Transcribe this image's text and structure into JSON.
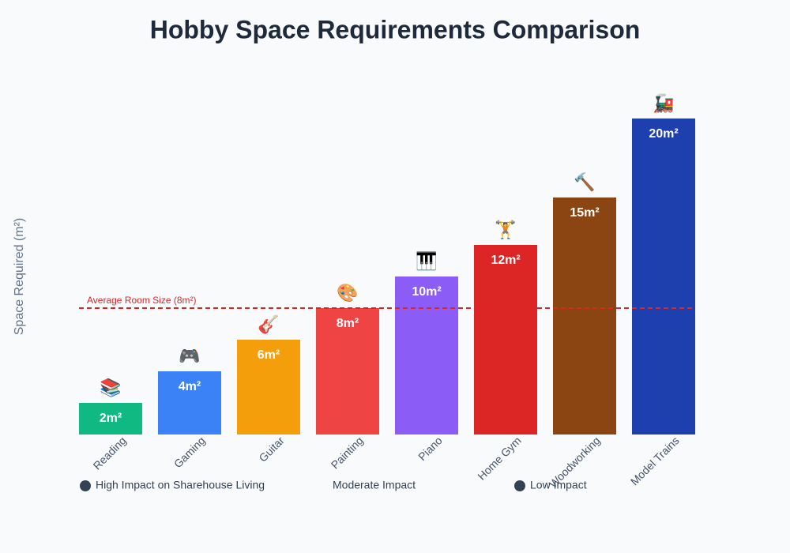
{
  "chart_data": {
    "type": "bar",
    "title": "Hobby Space Requirements Comparison",
    "y_label": "Space Required (m²)",
    "categories": [
      "Reading",
      "Gaming",
      "Guitar",
      "Painting",
      "Piano",
      "Home Gym",
      "Woodworking",
      "Model Trains"
    ],
    "values": [
      2,
      4,
      6,
      8,
      10,
      12,
      15,
      20
    ],
    "value_labels": [
      "2m²",
      "4m²",
      "6m²",
      "8m²",
      "10m²",
      "12m²",
      "15m²",
      "20m²"
    ],
    "icons": [
      "📚",
      "🎮",
      "🎸",
      "🎨",
      "🎹",
      "🏋",
      "🔨",
      "🚂"
    ],
    "colors": [
      "#10b981",
      "#3b82f6",
      "#f59e0b",
      "#ef4444",
      "#8b5cf6",
      "#dc2626",
      "#8b4513",
      "#1e40af"
    ],
    "ylim": [
      0,
      20
    ],
    "reference_line": {
      "value": 8,
      "label": "Average Room Size (8m²)",
      "color": "#dc2626"
    },
    "legend": [
      {
        "label": "High Impact on Sharehouse Living",
        "marker": true
      },
      {
        "label": "Moderate Impact",
        "marker": false
      },
      {
        "label": "Low Impact",
        "marker": true
      }
    ]
  }
}
